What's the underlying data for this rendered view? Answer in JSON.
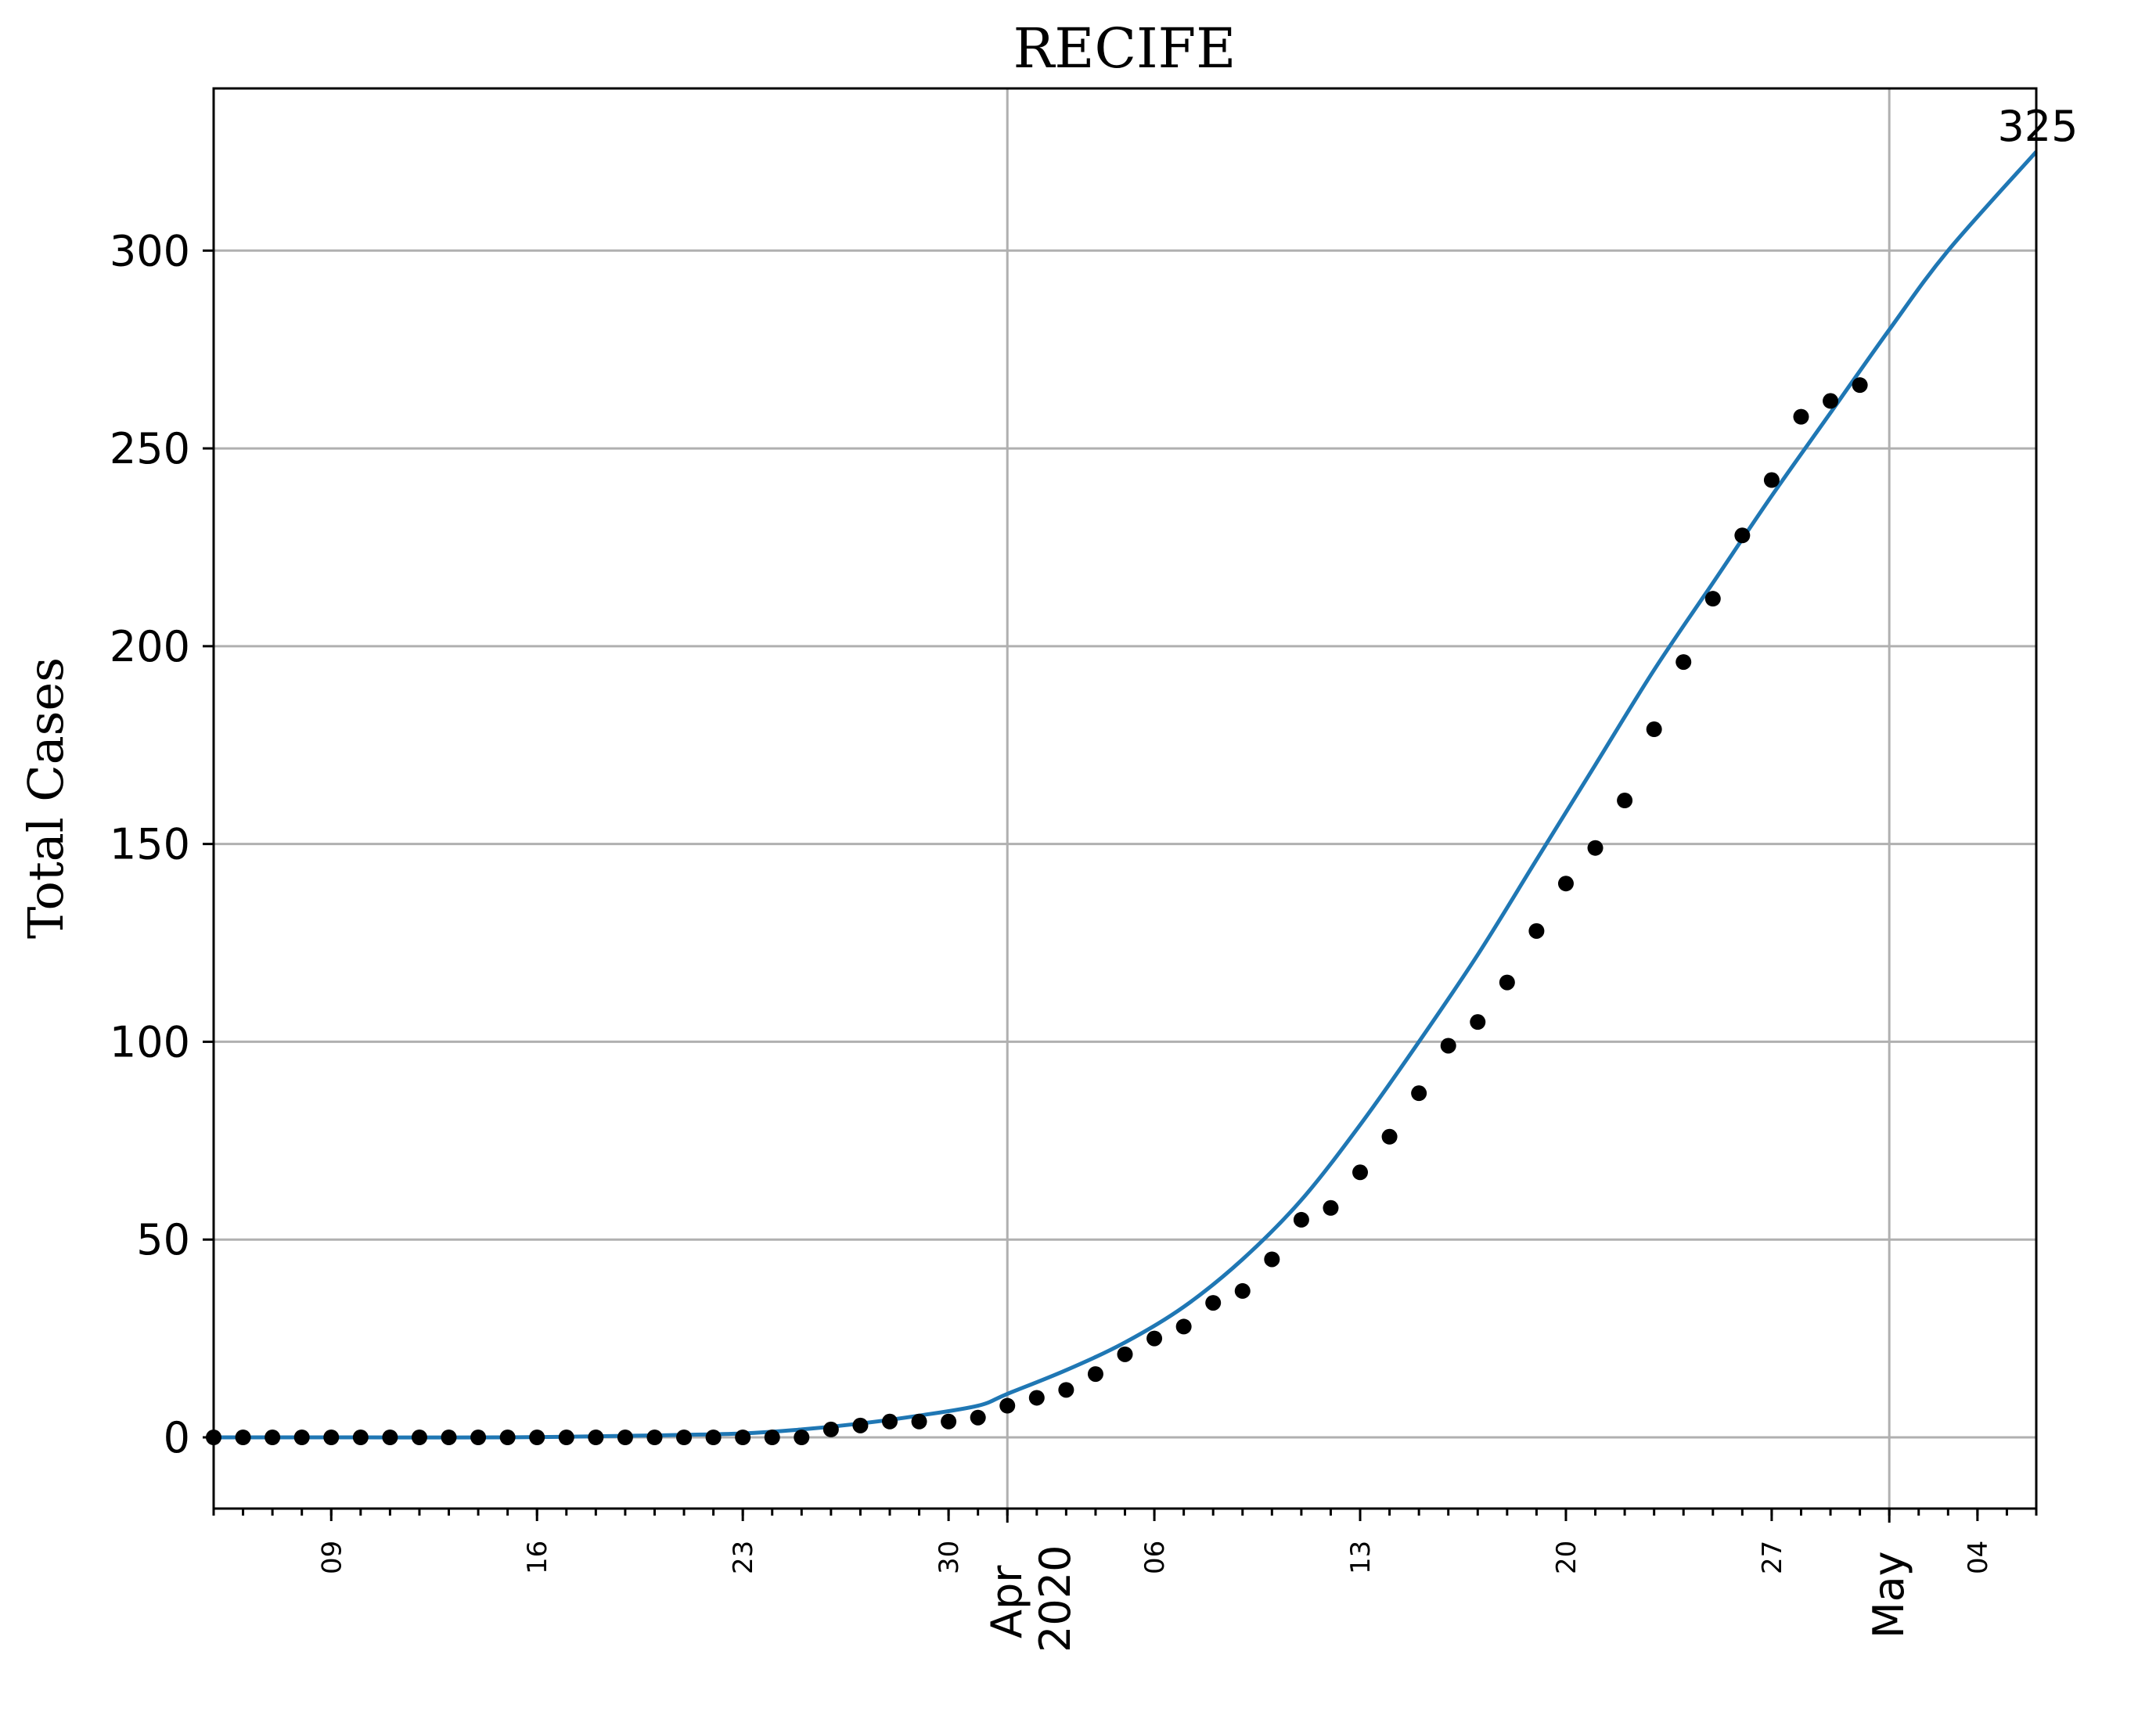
{
  "chart_data": {
    "type": "scatter",
    "title": "RECIFE",
    "xlabel": "",
    "ylabel": "Total Cases",
    "x_start": "2020-03-05",
    "xlim": [
      "2020-03-05",
      "2020-05-06"
    ],
    "ylim": [
      -18,
      341
    ],
    "yticks": [
      0,
      50,
      100,
      150,
      200,
      250,
      300
    ],
    "grid": true,
    "x_minor_ticks": [
      {
        "date": "2020-03-09",
        "label": "09"
      },
      {
        "date": "2020-03-16",
        "label": "16"
      },
      {
        "date": "2020-03-23",
        "label": "23"
      },
      {
        "date": "2020-03-30",
        "label": "30"
      },
      {
        "date": "2020-04-06",
        "label": "06"
      },
      {
        "date": "2020-04-13",
        "label": "13"
      },
      {
        "date": "2020-04-20",
        "label": "20"
      },
      {
        "date": "2020-04-27",
        "label": "27"
      },
      {
        "date": "2020-05-04",
        "label": "04"
      }
    ],
    "x_major_ticks": [
      {
        "date": "2020-04-01",
        "label": "Apr",
        "sublabel": "2020"
      },
      {
        "date": "2020-05-01",
        "label": "May"
      }
    ],
    "series": [
      {
        "kind": "scatter",
        "color": "#000000",
        "x": [
          "2020-03-05",
          "2020-03-06",
          "2020-03-07",
          "2020-03-08",
          "2020-03-09",
          "2020-03-10",
          "2020-03-11",
          "2020-03-12",
          "2020-03-13",
          "2020-03-14",
          "2020-03-15",
          "2020-03-16",
          "2020-03-17",
          "2020-03-18",
          "2020-03-19",
          "2020-03-20",
          "2020-03-21",
          "2020-03-22",
          "2020-03-23",
          "2020-03-24",
          "2020-03-25",
          "2020-03-26",
          "2020-03-27",
          "2020-03-28",
          "2020-03-29",
          "2020-03-30",
          "2020-03-31",
          "2020-04-01",
          "2020-04-02",
          "2020-04-03",
          "2020-04-04",
          "2020-04-05",
          "2020-04-06",
          "2020-04-07",
          "2020-04-08",
          "2020-04-09",
          "2020-04-10",
          "2020-04-11",
          "2020-04-12",
          "2020-04-13",
          "2020-04-14",
          "2020-04-15",
          "2020-04-16",
          "2020-04-17",
          "2020-04-18",
          "2020-04-19",
          "2020-04-20",
          "2020-04-21",
          "2020-04-22",
          "2020-04-23",
          "2020-04-24",
          "2020-04-25",
          "2020-04-26",
          "2020-04-27",
          "2020-04-28",
          "2020-04-29",
          "2020-04-30"
        ],
        "values": [
          0,
          0,
          0,
          0,
          0,
          0,
          0,
          0,
          0,
          0,
          0,
          0,
          0,
          0,
          0,
          0,
          0,
          0,
          0,
          0,
          0,
          2,
          3,
          4,
          4,
          4,
          5,
          8,
          10,
          12,
          16,
          21,
          25,
          28,
          34,
          37,
          45,
          55,
          58,
          67,
          76,
          87,
          99,
          105,
          115,
          128,
          140,
          149,
          161,
          179,
          196,
          212,
          228,
          242,
          258,
          262,
          266
        ]
      },
      {
        "kind": "line",
        "color": "#1f77b4",
        "x": [
          "2020-03-05",
          "2020-03-10",
          "2020-03-15",
          "2020-03-20",
          "2020-03-23",
          "2020-03-25",
          "2020-03-27",
          "2020-03-29",
          "2020-03-31",
          "2020-04-01",
          "2020-04-03",
          "2020-04-05",
          "2020-04-07",
          "2020-04-09",
          "2020-04-11",
          "2020-04-13",
          "2020-04-15",
          "2020-04-17",
          "2020-04-19",
          "2020-04-21",
          "2020-04-23",
          "2020-04-25",
          "2020-04-27",
          "2020-04-29",
          "2020-05-01",
          "2020-05-03",
          "2020-05-06"
        ],
        "values": [
          0,
          0,
          0,
          0.5,
          1,
          2,
          3.5,
          5.5,
          8,
          11,
          17,
          24,
          33,
          45,
          60,
          79,
          100,
          122,
          146,
          170,
          194,
          216,
          238,
          259,
          280,
          300,
          325
        ]
      }
    ],
    "annotations": [
      {
        "text": "325",
        "x": "2020-05-06",
        "y": 325
      }
    ]
  }
}
